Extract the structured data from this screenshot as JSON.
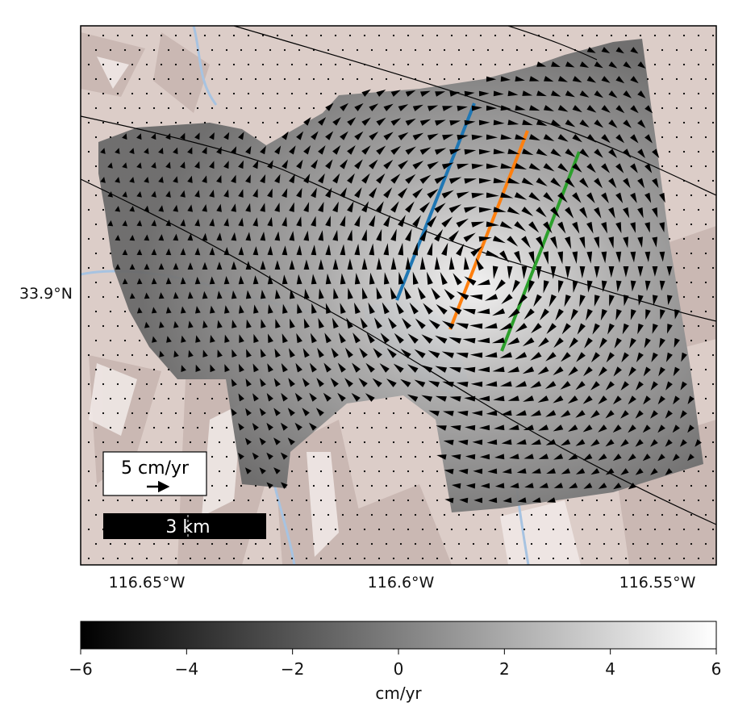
{
  "map": {
    "lat_labels": [
      "33.9°N"
    ],
    "lon_labels": [
      "116.65°W",
      "116.6°W",
      "116.55°W"
    ],
    "velocity_scale_label": "5 cm/yr",
    "distance_scale_label": "3 km",
    "colors": {
      "terrain_base": "#d8c9c4",
      "water": "#a7c3e1",
      "faults": "#000000",
      "arrows": "#000000",
      "profile_lines": [
        "#1f77b4",
        "#ff7f0e",
        "#2ca02c"
      ]
    }
  },
  "colorbar": {
    "colormap": "grayscale",
    "vmin": -6,
    "vmax": 6,
    "tick_labels": [
      "−6",
      "−4",
      "−2",
      "0",
      "2",
      "4",
      "6"
    ],
    "label": "cm/yr"
  }
}
